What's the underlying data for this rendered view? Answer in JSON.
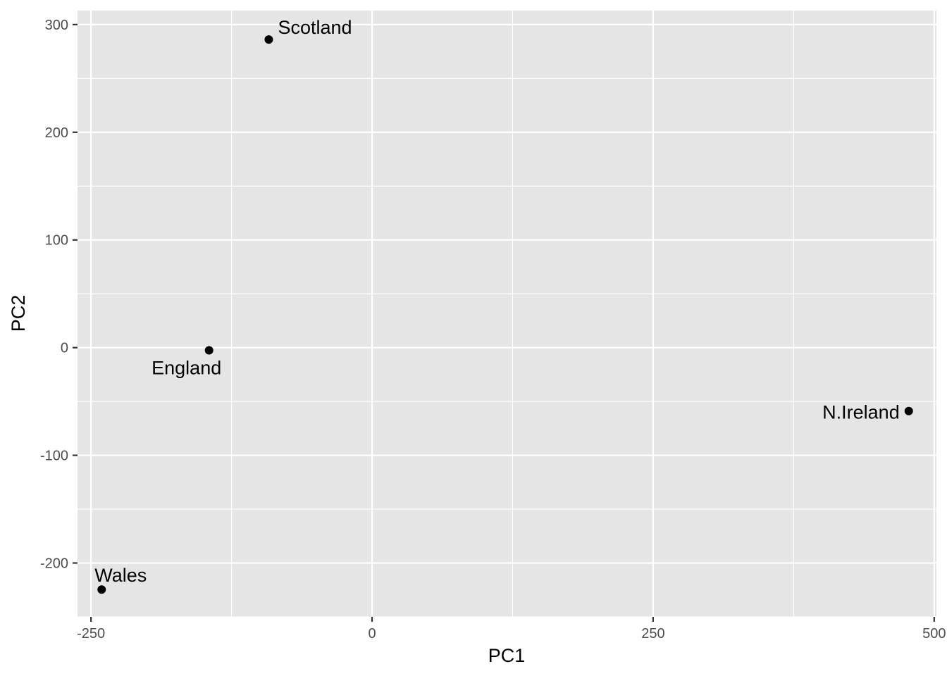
{
  "chart_data": {
    "type": "scatter",
    "title": "",
    "xlabel": "PC1",
    "ylabel": "PC2",
    "xlim": [
      -262,
      502
    ],
    "ylim": [
      -250,
      313
    ],
    "x_ticks": [
      -250,
      0,
      250,
      500
    ],
    "x_tick_labels": [
      "-250",
      "0",
      "250",
      "500"
    ],
    "y_ticks": [
      -200,
      -100,
      0,
      100,
      200,
      300
    ],
    "y_tick_labels": [
      "-200",
      "-100",
      "0",
      "100",
      "200",
      "300"
    ],
    "grid": true,
    "legend": "none",
    "colors": {
      "panel": "#e5e5e5",
      "grid": "#ffffff",
      "point": "#000000",
      "tick_text": "#4d4d4d"
    },
    "points": [
      {
        "label": "England",
        "x": -144.99,
        "y": -2.53
      },
      {
        "label": "Wales",
        "x": -240.53,
        "y": -224.65
      },
      {
        "label": "Scotland",
        "x": -91.87,
        "y": 286.08
      },
      {
        "label": "N.Ireland",
        "x": 477.39,
        "y": -58.9
      }
    ]
  }
}
